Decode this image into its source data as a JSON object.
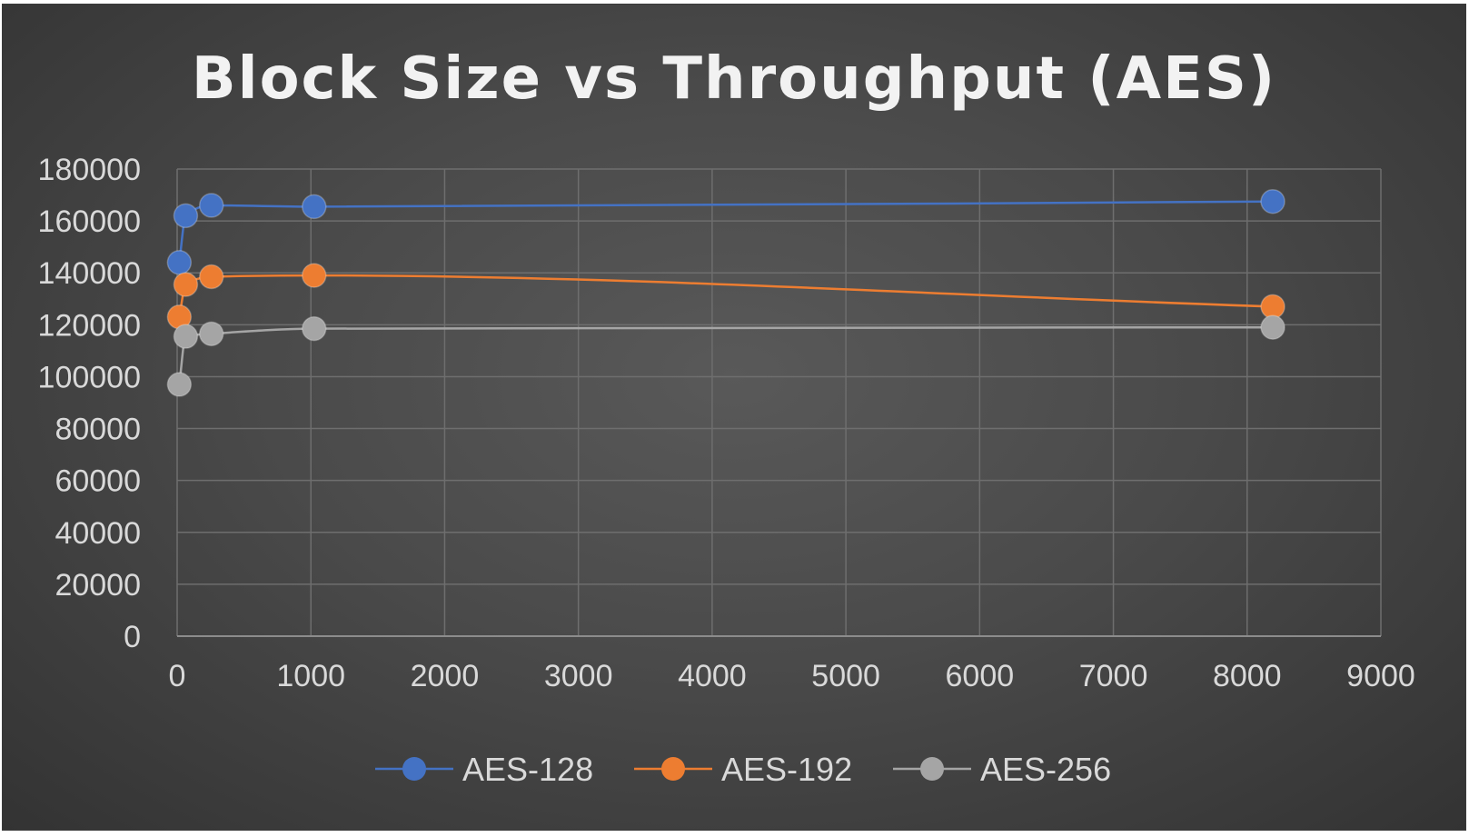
{
  "chart_data": {
    "type": "scatter",
    "title": "Block Size vs Throughput (AES)",
    "xlabel": "",
    "ylabel": "",
    "xlim": [
      0,
      9000
    ],
    "ylim": [
      0,
      180000
    ],
    "x_ticks": [
      "0",
      "1000",
      "2000",
      "3000",
      "4000",
      "5000",
      "6000",
      "7000",
      "8000",
      "9000"
    ],
    "y_ticks": [
      "0",
      "20000",
      "40000",
      "60000",
      "80000",
      "100000",
      "120000",
      "140000",
      "160000",
      "180000"
    ],
    "grid": true,
    "legend_position": "bottom",
    "series": [
      {
        "name": "AES-128",
        "color": "#4472c4",
        "x": [
          16,
          64,
          256,
          1024,
          8192
        ],
        "y": [
          144000,
          162000,
          166000,
          165500,
          167500
        ]
      },
      {
        "name": "AES-192",
        "color": "#ed7d31",
        "x": [
          16,
          64,
          256,
          1024,
          8192
        ],
        "y": [
          123000,
          135500,
          138500,
          139000,
          127000
        ]
      },
      {
        "name": "AES-256",
        "color": "#a5a5a5",
        "x": [
          16,
          64,
          256,
          1024,
          8192
        ],
        "y": [
          97000,
          115500,
          116500,
          118500,
          119000
        ]
      }
    ]
  }
}
